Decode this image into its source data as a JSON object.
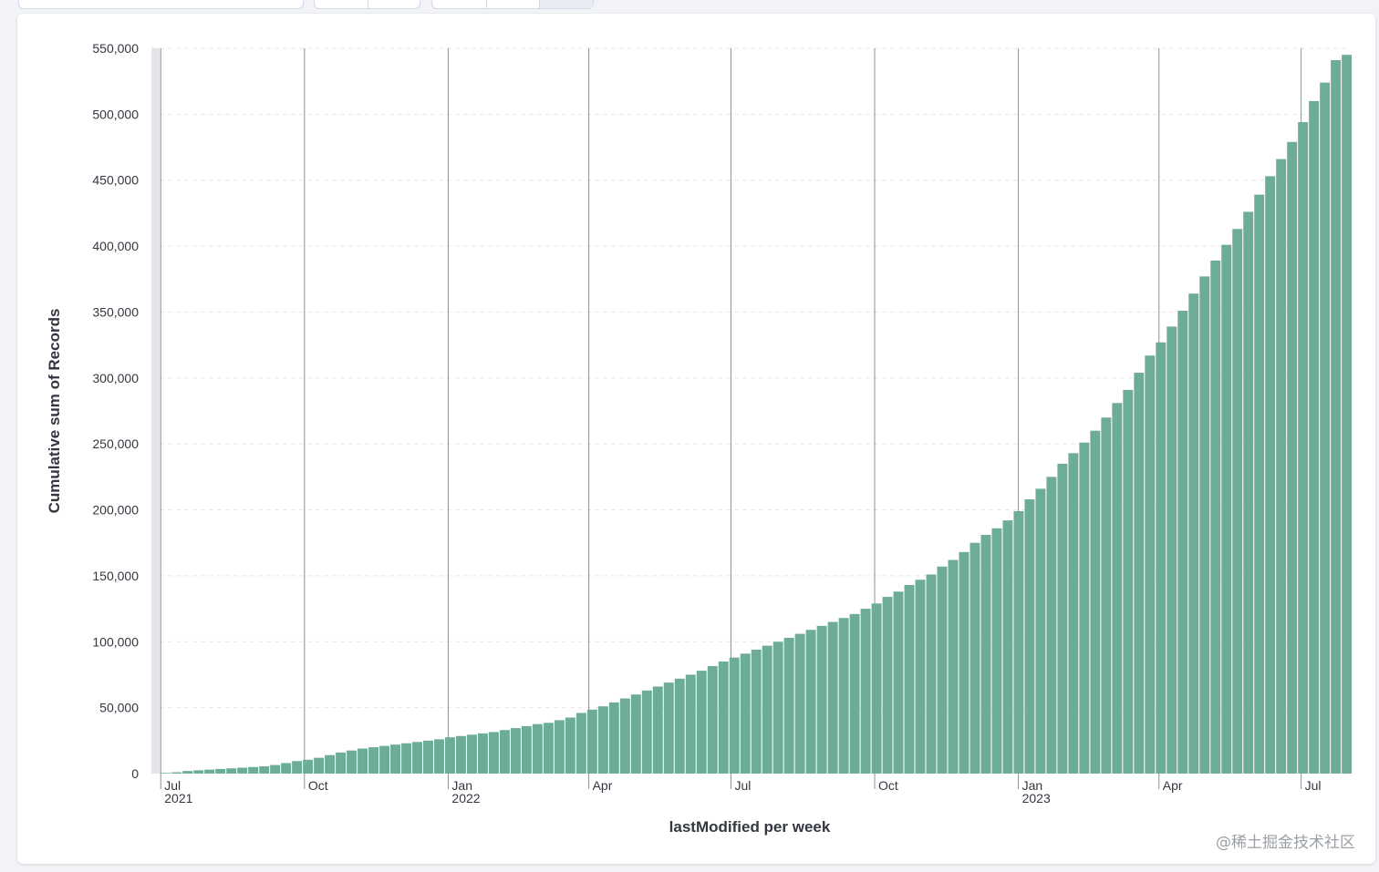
{
  "page": {
    "watermark": "@稀土掘金技术社区"
  },
  "toolbar": {
    "controls": [
      {
        "segments": 1
      },
      {
        "segments": 2
      },
      {
        "segments": 3
      }
    ]
  },
  "chart_data": {
    "type": "bar",
    "xlabel": "lastModified per week",
    "ylabel": "Cumulative sum of Records",
    "ylim": [
      0,
      550000
    ],
    "yticks": [
      0,
      50000,
      100000,
      150000,
      200000,
      250000,
      300000,
      350000,
      400000,
      450000,
      500000,
      550000
    ],
    "ytick_labels": [
      "0",
      "50,000",
      "100,000",
      "150,000",
      "200,000",
      "250,000",
      "300,000",
      "350,000",
      "400,000",
      "450,000",
      "500,000",
      "550,000"
    ],
    "xrange": [
      "2021-06-25",
      "2023-07-31"
    ],
    "xticks": [
      {
        "date": "2021-07-01",
        "label": "Jul",
        "year": "2021"
      },
      {
        "date": "2021-10-01",
        "label": "Oct",
        "year": ""
      },
      {
        "date": "2022-01-01",
        "label": "Jan",
        "year": "2022"
      },
      {
        "date": "2022-04-01",
        "label": "Apr",
        "year": ""
      },
      {
        "date": "2022-07-01",
        "label": "Jul",
        "year": ""
      },
      {
        "date": "2022-10-01",
        "label": "Oct",
        "year": ""
      },
      {
        "date": "2023-01-01",
        "label": "Jan",
        "year": "2023"
      },
      {
        "date": "2023-04-01",
        "label": "Apr",
        "year": ""
      },
      {
        "date": "2023-07-01",
        "label": "Jul",
        "year": ""
      }
    ],
    "bar_color": "#6dad96",
    "grid": true,
    "legend": "none",
    "x": [
      "2021-07-01",
      "2021-07-08",
      "2021-07-15",
      "2021-07-22",
      "2021-07-29",
      "2021-08-05",
      "2021-08-12",
      "2021-08-19",
      "2021-08-26",
      "2021-09-02",
      "2021-09-09",
      "2021-09-16",
      "2021-09-23",
      "2021-09-30",
      "2021-10-07",
      "2021-10-14",
      "2021-10-21",
      "2021-10-28",
      "2021-11-04",
      "2021-11-11",
      "2021-11-18",
      "2021-11-25",
      "2021-12-02",
      "2021-12-09",
      "2021-12-16",
      "2021-12-23",
      "2021-12-30",
      "2022-01-06",
      "2022-01-13",
      "2022-01-20",
      "2022-01-27",
      "2022-02-03",
      "2022-02-10",
      "2022-02-17",
      "2022-02-24",
      "2022-03-03",
      "2022-03-10",
      "2022-03-17",
      "2022-03-24",
      "2022-03-31",
      "2022-04-07",
      "2022-04-14",
      "2022-04-21",
      "2022-04-28",
      "2022-05-05",
      "2022-05-12",
      "2022-05-19",
      "2022-05-26",
      "2022-06-02",
      "2022-06-09",
      "2022-06-16",
      "2022-06-23",
      "2022-06-30",
      "2022-07-07",
      "2022-07-14",
      "2022-07-21",
      "2022-07-28",
      "2022-08-04",
      "2022-08-11",
      "2022-08-18",
      "2022-08-25",
      "2022-09-01",
      "2022-09-08",
      "2022-09-15",
      "2022-09-22",
      "2022-09-29",
      "2022-10-06",
      "2022-10-13",
      "2022-10-20",
      "2022-10-27",
      "2022-11-03",
      "2022-11-10",
      "2022-11-17",
      "2022-11-24",
      "2022-12-01",
      "2022-12-08",
      "2022-12-15",
      "2022-12-22",
      "2022-12-29",
      "2023-01-05",
      "2023-01-12",
      "2023-01-19",
      "2023-01-26",
      "2023-02-02",
      "2023-02-09",
      "2023-02-16",
      "2023-02-23",
      "2023-03-02",
      "2023-03-09",
      "2023-03-16",
      "2023-03-23",
      "2023-03-30",
      "2023-04-06",
      "2023-04-13",
      "2023-04-20",
      "2023-04-27",
      "2023-05-04",
      "2023-05-11",
      "2023-05-18",
      "2023-05-25",
      "2023-06-01",
      "2023-06-08",
      "2023-06-15",
      "2023-06-22",
      "2023-06-29",
      "2023-07-06",
      "2023-07-13",
      "2023-07-20",
      "2023-07-27"
    ],
    "values": [
      500,
      1000,
      2000,
      2500,
      3000,
      3500,
      4000,
      4500,
      5000,
      5500,
      6500,
      8000,
      9500,
      10500,
      12000,
      14000,
      16000,
      17500,
      19000,
      20000,
      21000,
      22000,
      23000,
      24000,
      25000,
      26000,
      27500,
      28500,
      29500,
      30500,
      31500,
      33000,
      34500,
      36000,
      37500,
      38500,
      40500,
      42500,
      46000,
      48500,
      51000,
      54000,
      57000,
      60000,
      63000,
      66000,
      69000,
      72000,
      75000,
      78000,
      81500,
      85000,
      88000,
      91000,
      94000,
      97000,
      100000,
      103000,
      106000,
      109000,
      112000,
      115000,
      118000,
      121000,
      125000,
      129000,
      134000,
      138000,
      143000,
      147000,
      151000,
      157000,
      162000,
      168000,
      175000,
      181000,
      186000,
      192000,
      199000,
      208000,
      216000,
      225000,
      235000,
      243000,
      251000,
      260000,
      270000,
      281000,
      291000,
      304000,
      317000,
      327000,
      339000,
      351000,
      364000,
      377000,
      389000,
      401000,
      413000,
      426000,
      439000,
      453000,
      466000,
      479000,
      494000,
      510000,
      524000,
      541000,
      545000
    ]
  }
}
